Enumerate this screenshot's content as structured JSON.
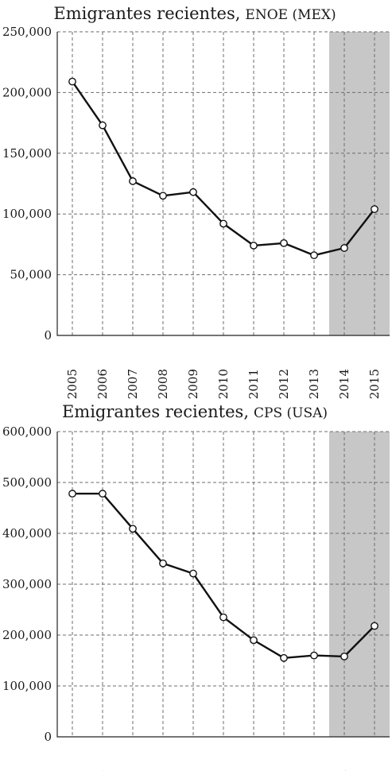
{
  "chart_data": [
    {
      "type": "line",
      "title_main": "Emigrantes recientes,",
      "title_source": "ENOE (MEX)",
      "categories": [
        "2005",
        "2006",
        "2007",
        "2008",
        "2009",
        "2010",
        "2011",
        "2012",
        "2013",
        "2014",
        "2015"
      ],
      "values": [
        209000,
        173000,
        127000,
        115000,
        118000,
        92000,
        74000,
        76000,
        66000,
        72000,
        104000
      ],
      "ylim": [
        0,
        250000
      ],
      "yticks": [
        "0",
        "50,000",
        "100,000",
        "150,000",
        "200,000",
        "250,000"
      ],
      "ytick_values": [
        0,
        50000,
        100000,
        150000,
        200000,
        250000
      ],
      "shaded_categories": [
        "2014",
        "2015"
      ],
      "shade_color": "#c7c7c8",
      "grid": true
    },
    {
      "type": "line",
      "title_main": "Emigrantes recientes,",
      "title_source": "CPS (USA)",
      "categories": [
        "2005",
        "2006",
        "2007",
        "2008",
        "2009",
        "2010",
        "2011",
        "2012",
        "2013",
        "2014",
        "2015"
      ],
      "values": [
        478000,
        478000,
        409000,
        341000,
        321000,
        235000,
        190000,
        155000,
        160000,
        158000,
        218000
      ],
      "ylim": [
        0,
        600000
      ],
      "yticks": [
        "0",
        "100,000",
        "200,000",
        "300,000",
        "400,000",
        "500,000",
        "600,000"
      ],
      "ytick_values": [
        0,
        100000,
        200000,
        300000,
        400000,
        500000,
        600000
      ],
      "shaded_categories": [
        "2014",
        "2015"
      ],
      "shade_color": "#c7c7c8",
      "grid": true
    }
  ]
}
